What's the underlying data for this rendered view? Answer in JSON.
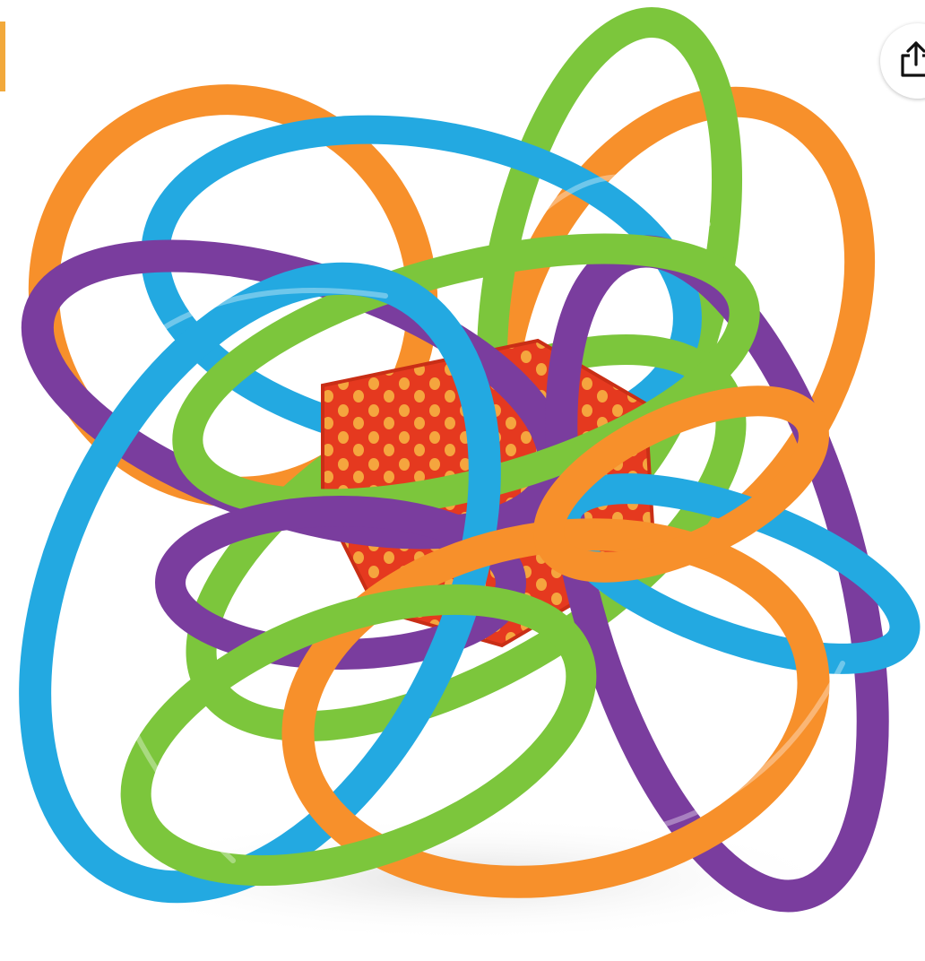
{
  "viewer": {
    "image_subject": "product-photo-rattle-toy",
    "share": {
      "icon": "share-icon"
    }
  },
  "colors": {
    "orange": "#f7902b",
    "blue": "#23a9e1",
    "green": "#7cc63c",
    "purple": "#7a3d9e",
    "center_cube": "#e5391f",
    "cube_dots": "#f5a53e",
    "background": "#ffffff"
  }
}
